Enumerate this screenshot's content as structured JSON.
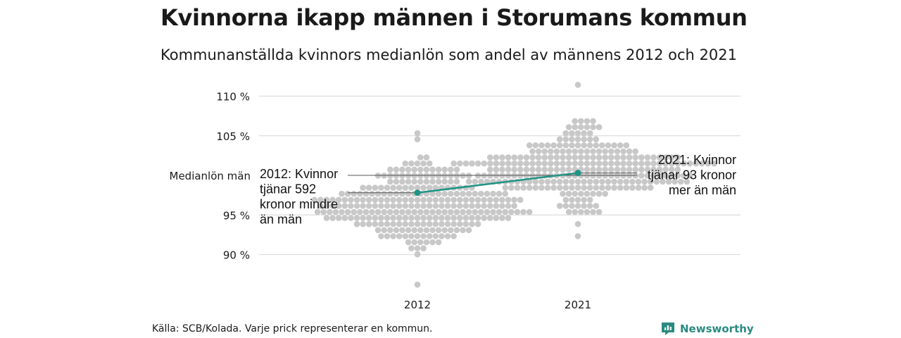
{
  "title": "Kvinnorna ikapp männen i Storumans kommun",
  "subtitle": "Kommunanställda kvinnors medianlön som andel av männens 2012 och 2021",
  "source": "Källa: SCB/Kolada. Varje prick representerar en kommun.",
  "logo": {
    "text": "Newsworthy",
    "icon": "newsworthy-logo-icon"
  },
  "colors": {
    "dots": "#c8c8c8",
    "highlight": "#1f9484",
    "grid": "#dddddd",
    "refline": "#555555"
  },
  "chart_data": {
    "type": "scatter",
    "subtype": "beeswarm",
    "categories": [
      "2012",
      "2021"
    ],
    "y_ticks": [
      90,
      95,
      105,
      110
    ],
    "y_tick_labels": [
      "90 %",
      "95 %",
      "105 %",
      "110 %"
    ],
    "ylim": [
      86,
      112
    ],
    "reference_line": {
      "value": 100,
      "label": "Medianlön män"
    },
    "distribution_note": "",
    "series": [
      {
        "category": "2012",
        "min": 86.5,
        "max": 105.2,
        "center": 96.5,
        "highlight_value": 97.8,
        "annotation": [
          "2012: Kvinnor",
          "tjänar 592",
          "kronor mindre",
          "än män"
        ]
      },
      {
        "category": "2021",
        "min": 92.7,
        "max": 111.2,
        "center": 100.8,
        "highlight_value": 100.3,
        "annotation": [
          "2021: Kvinnor",
          "tjänar 93 kronor",
          "mer än män"
        ]
      }
    ]
  }
}
